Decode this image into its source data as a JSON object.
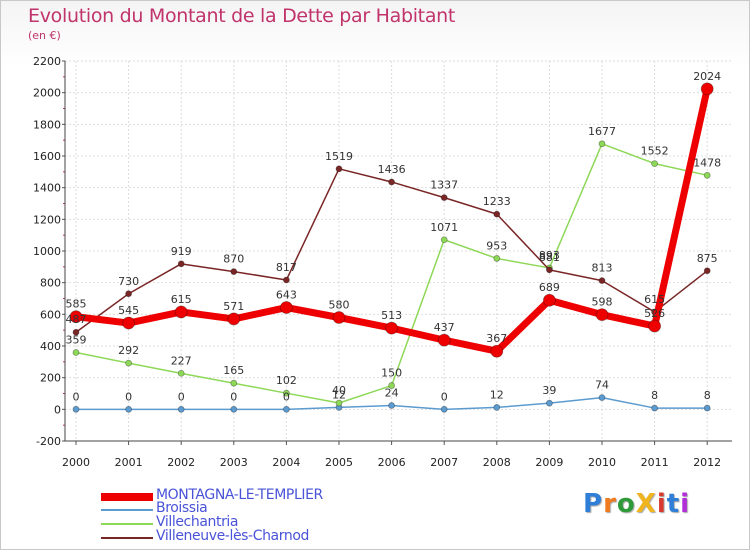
{
  "title": "Evolution du Montant de la Dette par Habitant",
  "unit": "(en €)",
  "logo": {
    "text": "ProXiti",
    "colors": [
      "#2f7fd8",
      "#f07b1e",
      "#2f9a3a",
      "#f0b41e",
      "#d83a2f",
      "#2f7fd8",
      "#b02fd8"
    ]
  },
  "chart_data": {
    "type": "line",
    "x": [
      "2000",
      "2001",
      "2002",
      "2003",
      "2004",
      "2005",
      "2006",
      "2007",
      "2008",
      "2009",
      "2010",
      "2011",
      "2012"
    ],
    "ylim": [
      -200,
      2200
    ],
    "yticks": [
      -200,
      0,
      200,
      400,
      600,
      800,
      1000,
      1200,
      1400,
      1600,
      1800,
      2000,
      2200
    ],
    "grid": true,
    "legend_position": "bottom-left",
    "series": [
      {
        "name": "MONTAGNA-LE-TEMPLIER",
        "color": "#ee0000",
        "width": 7,
        "marker": 6,
        "values": [
          585,
          545,
          615,
          571,
          643,
          580,
          513,
          437,
          367,
          689,
          598,
          526,
          2024
        ],
        "labels": [
          "585",
          "545",
          "615",
          "571",
          "643",
          "580",
          "513",
          "437",
          "367",
          "689",
          "598",
          "526",
          "2024"
        ]
      },
      {
        "name": "Broissia",
        "color": "#5b9bd0",
        "width": 1.5,
        "marker": 3,
        "values": [
          0,
          0,
          0,
          0,
          0,
          12,
          24,
          0,
          12,
          39,
          74,
          8,
          8
        ],
        "labels": [
          "0",
          "0",
          "0",
          "0",
          "0",
          "12",
          "24",
          "0",
          "12",
          "39",
          "74",
          "8",
          "8"
        ]
      },
      {
        "name": "Villechantria",
        "color": "#8ed858",
        "width": 1.5,
        "marker": 3,
        "values": [
          359,
          292,
          227,
          165,
          102,
          40,
          150,
          1071,
          953,
          893,
          1677,
          1552,
          1478
        ],
        "labels": [
          "359",
          "292",
          "227",
          "165",
          "102",
          "40",
          "150",
          "1071",
          "953",
          "893",
          "1677",
          "1552",
          "1478"
        ]
      },
      {
        "name": "Villeneuve-lès-Charnod",
        "color": "#7a2626",
        "width": 1.5,
        "marker": 3,
        "values": [
          487,
          730,
          919,
          870,
          817,
          1519,
          1436,
          1337,
          1233,
          881,
          813,
          615,
          875
        ],
        "labels": [
          "487",
          "730",
          "919",
          "870",
          "817",
          "1519",
          "1436",
          "1337",
          "1233",
          "881",
          "813",
          "615",
          "875"
        ]
      }
    ]
  }
}
